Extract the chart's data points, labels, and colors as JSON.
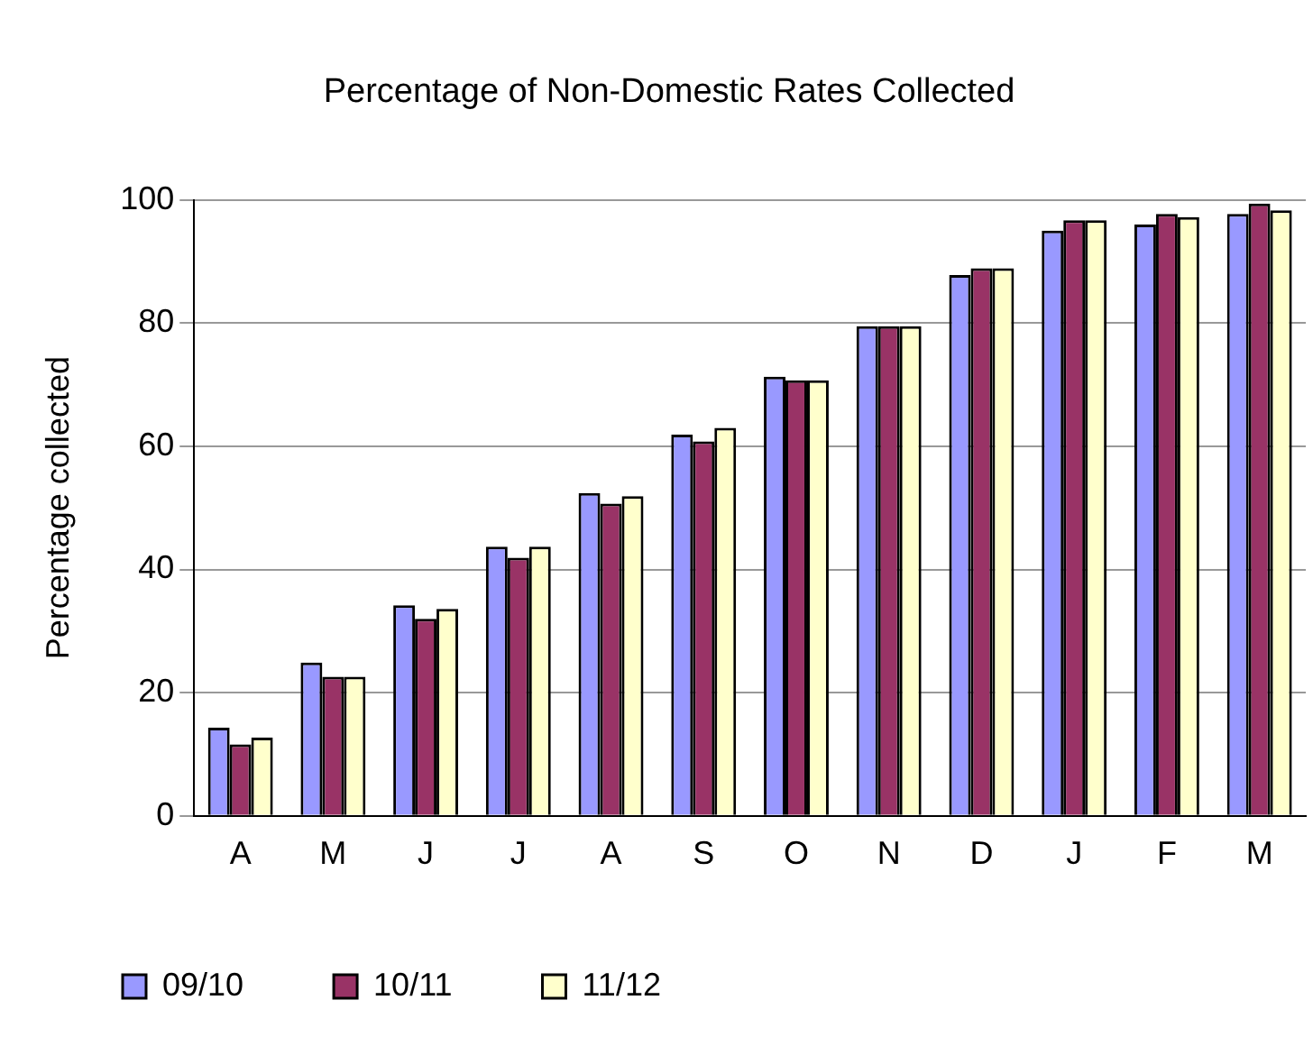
{
  "chart_data": {
    "type": "bar",
    "title": "Percentage of Non-Domestic Rates Collected",
    "ylabel": "Percentage collected",
    "categories": [
      "A",
      "M",
      "J",
      "J",
      "A",
      "S",
      "O",
      "N",
      "D",
      "J",
      "F",
      "M"
    ],
    "series": [
      {
        "name": "09/10",
        "color": "#9999ff",
        "values": [
          14.3,
          24.9,
          34.2,
          43.7,
          52.4,
          61.9,
          71.3,
          79.5,
          87.8,
          95.0,
          96.0,
          97.7
        ]
      },
      {
        "name": "10/11",
        "color": "#993366",
        "values": [
          11.6,
          22.6,
          32.0,
          41.9,
          50.7,
          60.8,
          70.7,
          79.5,
          88.9,
          96.7,
          97.7,
          99.4
        ]
      },
      {
        "name": "11/12",
        "color": "#ffffcc",
        "values": [
          12.7,
          22.6,
          33.6,
          43.7,
          51.9,
          63.0,
          70.7,
          79.5,
          88.9,
          96.7,
          97.2,
          98.3
        ]
      }
    ],
    "ylim": [
      0,
      100
    ],
    "yticks": [
      0,
      20,
      40,
      60,
      80,
      100
    ],
    "grid": "y",
    "legend": "bottom"
  }
}
